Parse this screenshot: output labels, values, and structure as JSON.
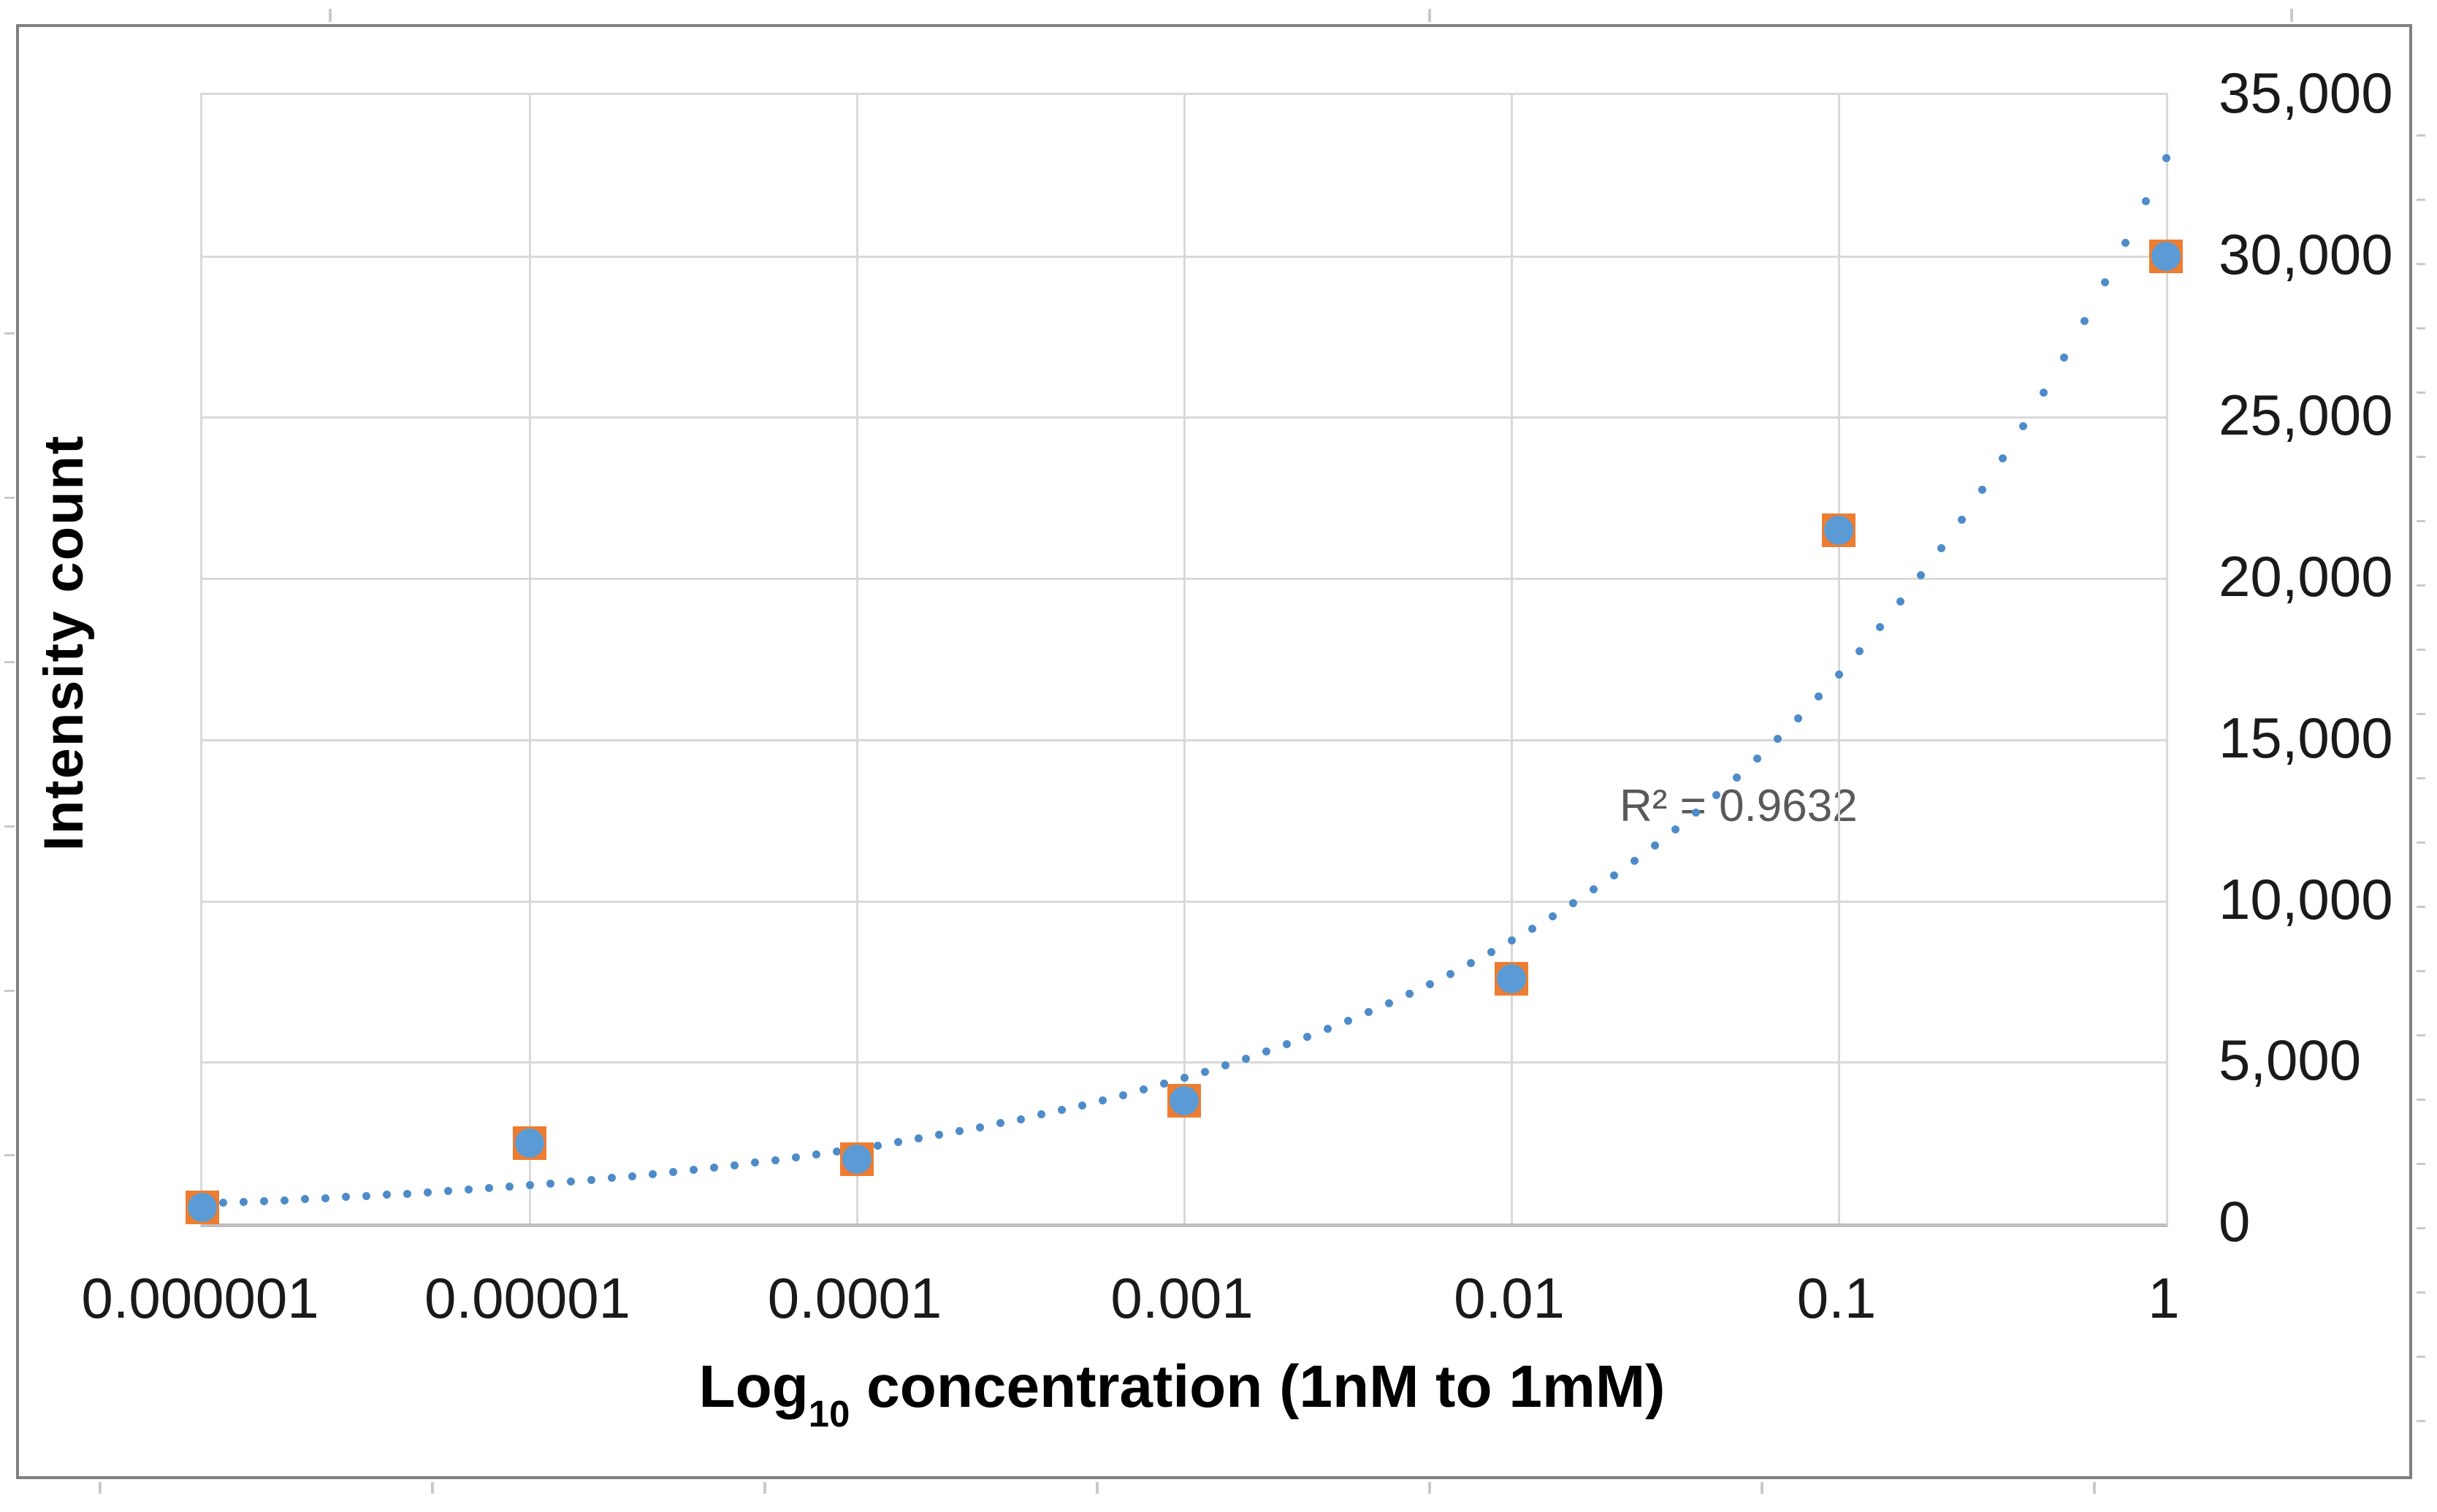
{
  "chart_data": {
    "type": "scatter",
    "title": "",
    "x_axis": {
      "label_main": "Log",
      "label_sub": "10",
      "label_rest": " concentration (1nM to 1mM)",
      "tick_labels": [
        "0.000001",
        "0.00001",
        "0.0001",
        "0.001",
        "0.01",
        "0.1",
        "1"
      ],
      "scale": "log10-decades"
    },
    "y_axis": {
      "label": "Intensity count",
      "side": "right",
      "min": 0,
      "max": 35000,
      "tick_values": [
        35000,
        30000,
        25000,
        20000,
        15000,
        10000,
        5000,
        0
      ],
      "tick_labels": [
        "35,000",
        "30,000",
        "25,000",
        "20,000",
        "15,000",
        "10,000",
        "5,000",
        "0"
      ]
    },
    "series": [
      {
        "name": "intensity-count",
        "x": [
          1e-06,
          1e-05,
          0.0001,
          0.001,
          0.01,
          0.1,
          1
        ],
        "values": [
          500,
          2500,
          2000,
          3800,
          7600,
          21500,
          30000
        ]
      }
    ],
    "trendline": {
      "type": "exponential-dotted",
      "r_squared_label": "R² = 0.9632",
      "start_value": 620,
      "ratio_per_decade": 1.94
    },
    "grid": true,
    "legend": "none",
    "colors": {
      "marker_fill": "#5B9BD5",
      "marker_outline": "#ED7D31",
      "trendline": "#4E8BC9",
      "gridline": "#D9D9D9",
      "axis_line": "#BFBFBF",
      "annotation_text": "#595959",
      "frame_border": "#808080"
    }
  }
}
